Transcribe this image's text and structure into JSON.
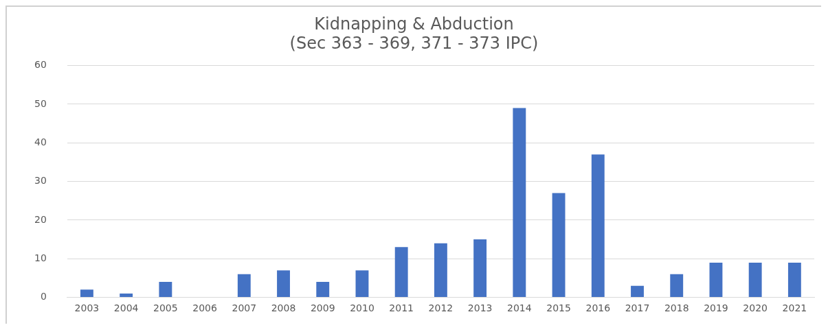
{
  "chart_data": {
    "type": "bar",
    "title": [
      "Kidnapping & Abduction",
      "(Sec 363 - 369, 371 - 373 IPC)"
    ],
    "categories": [
      "2003",
      "2004",
      "2005",
      "2006",
      "2007",
      "2008",
      "2009",
      "2010",
      "2011",
      "2012",
      "2013",
      "2014",
      "2015",
      "2016",
      "2017",
      "2018",
      "2019",
      "2020",
      "2021"
    ],
    "values": [
      2,
      1,
      4,
      0,
      6,
      7,
      4,
      7,
      13,
      14,
      15,
      49,
      27,
      37,
      3,
      6,
      9,
      9,
      9
    ],
    "color": "#4472c4",
    "ylim": [
      0,
      60
    ],
    "yticks": [
      0,
      10,
      20,
      30,
      40,
      50,
      60
    ],
    "grid": "y",
    "legend": false
  }
}
